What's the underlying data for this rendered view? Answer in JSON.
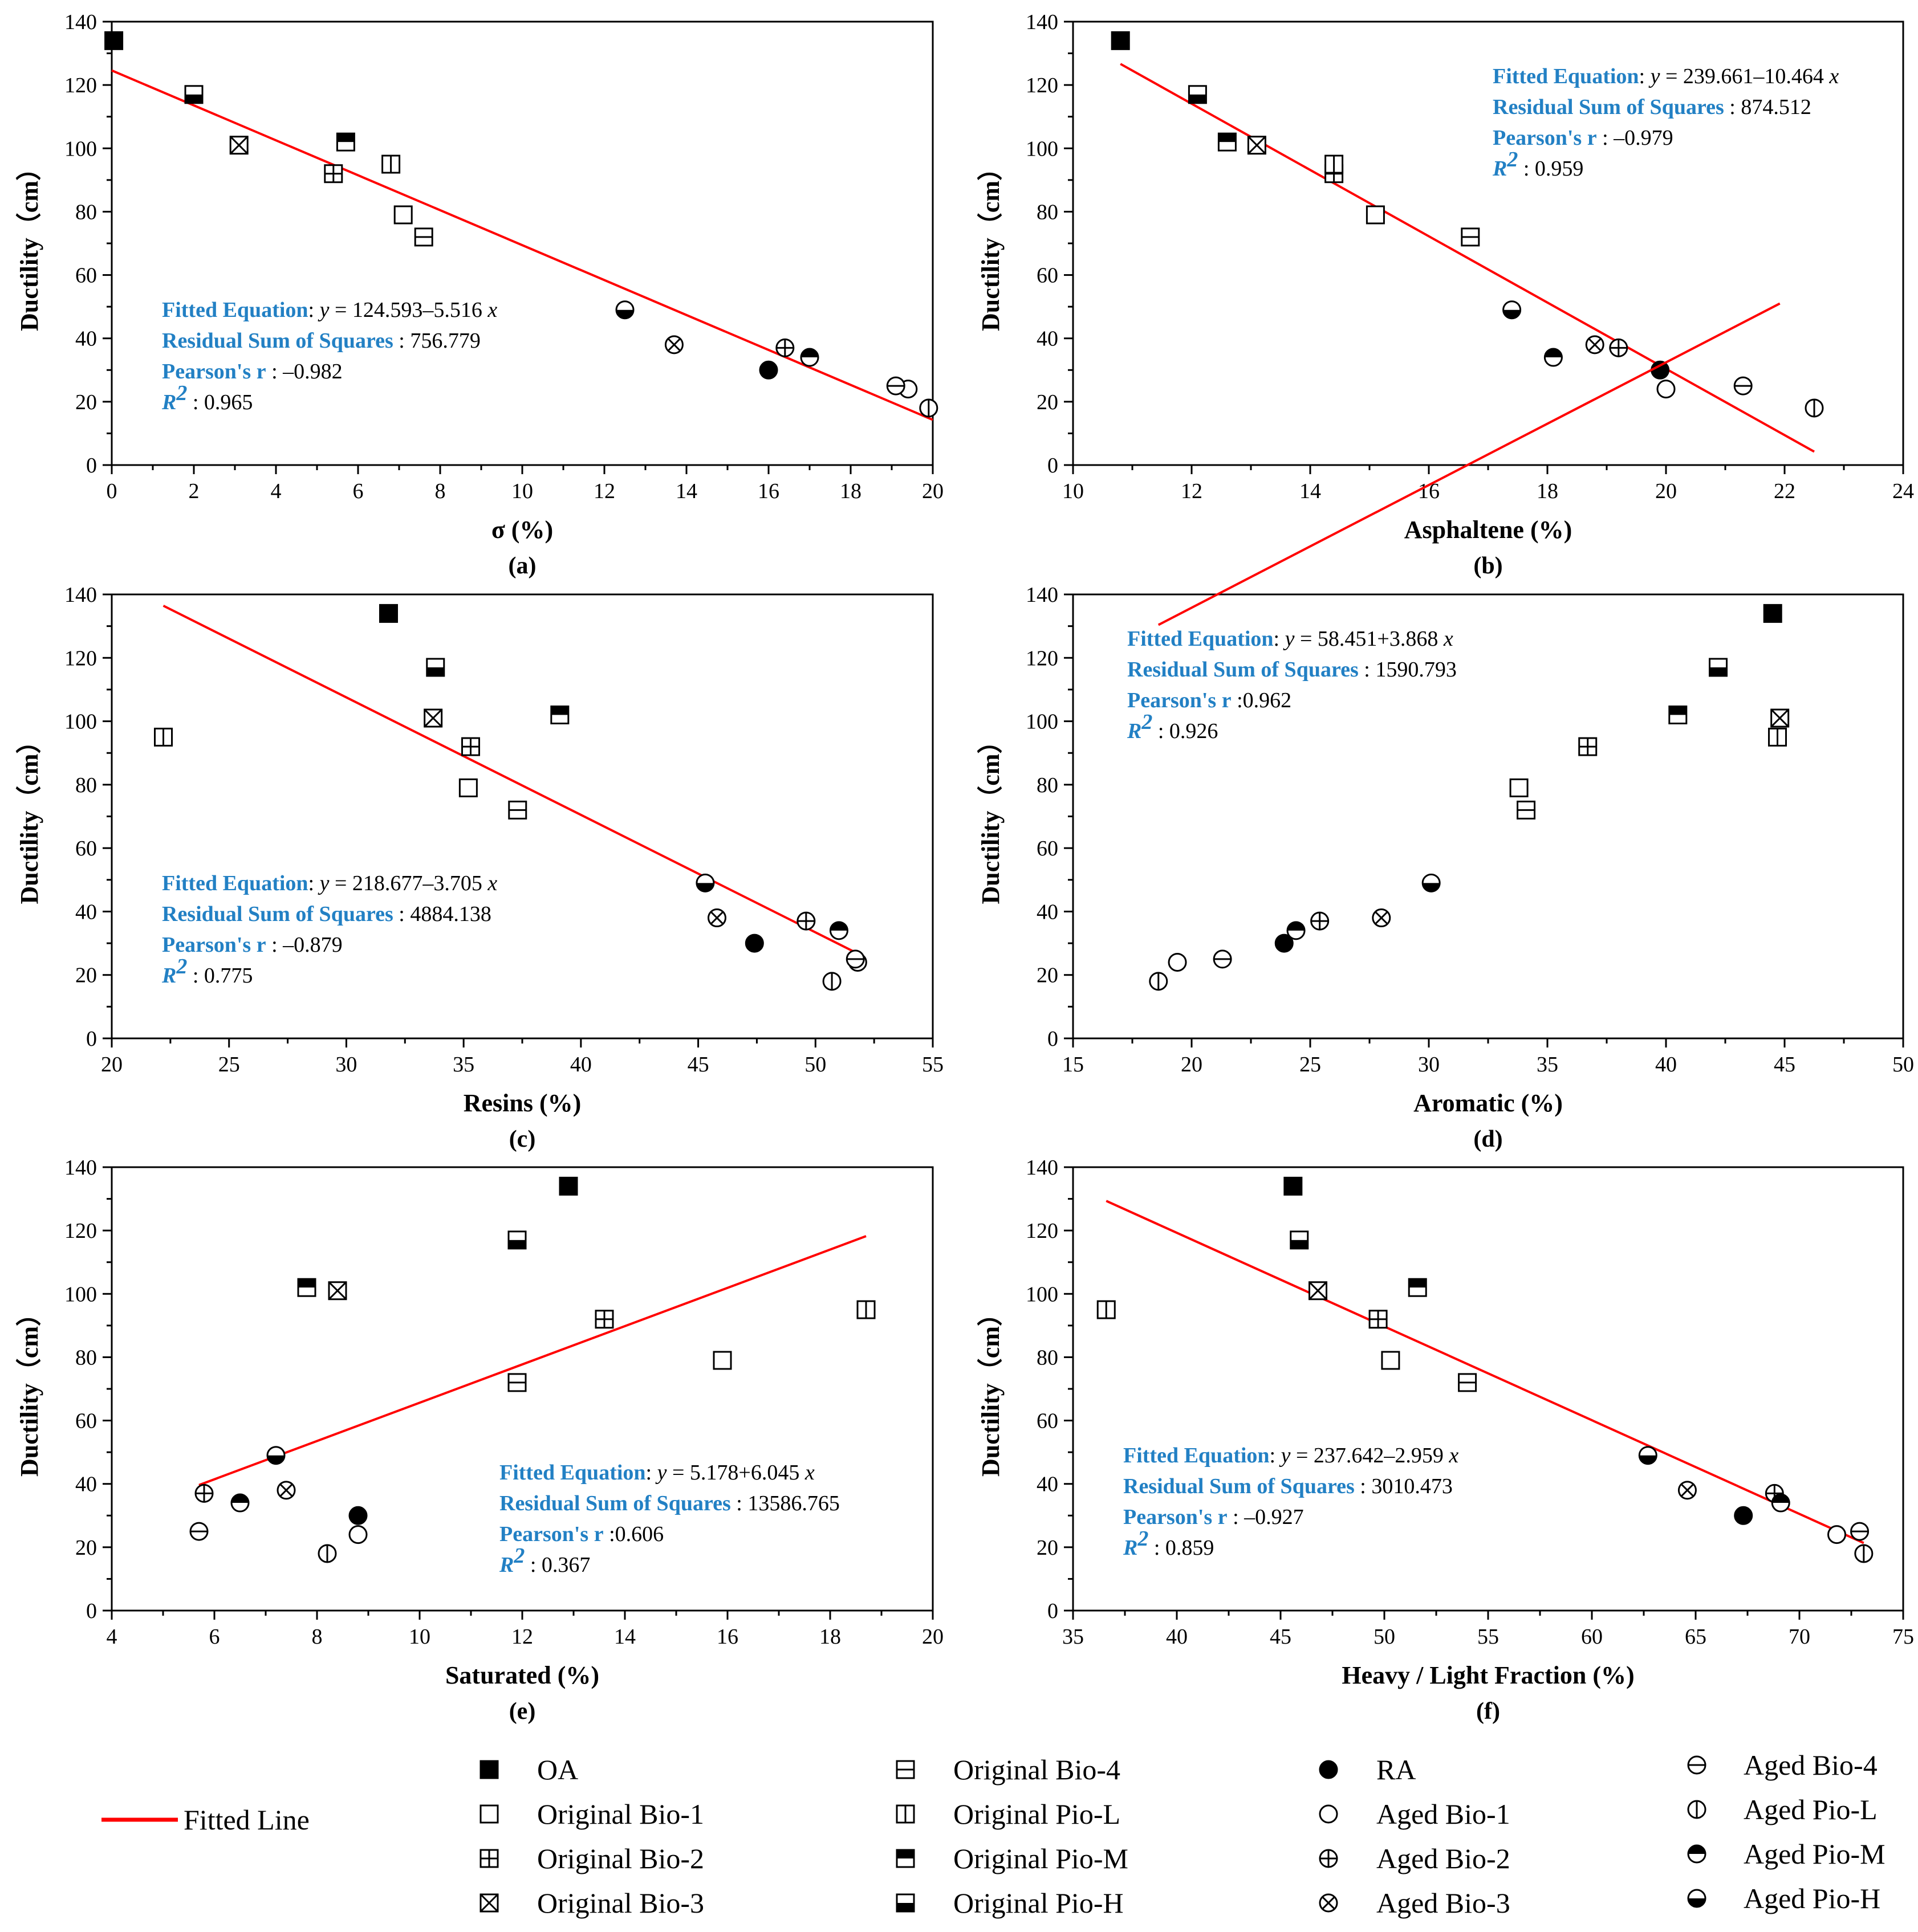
{
  "legend": {
    "fitted_line_label": "Fitted Line",
    "fit_color": "#ff0000",
    "stat_label_color": "#2280c4",
    "series": [
      {
        "id": "OA",
        "label": "OA",
        "marker": "filled-square"
      },
      {
        "id": "OB1",
        "label": "Original Bio-1",
        "marker": "open-square"
      },
      {
        "id": "OB2",
        "label": "Original Bio-2",
        "marker": "square-plus"
      },
      {
        "id": "OB3",
        "label": "Original Bio-3",
        "marker": "square-x"
      },
      {
        "id": "OB4",
        "label": "Original Bio-4",
        "marker": "square-hline"
      },
      {
        "id": "OPL",
        "label": "Original Pio-L",
        "marker": "square-vline"
      },
      {
        "id": "OPM",
        "label": "Original Pio-M",
        "marker": "square-top-filled"
      },
      {
        "id": "OPH",
        "label": "Original Pio-H",
        "marker": "square-bottom-filled"
      },
      {
        "id": "RA",
        "label": "RA",
        "marker": "filled-circle"
      },
      {
        "id": "AB1",
        "label": "Aged Bio-1",
        "marker": "open-circle"
      },
      {
        "id": "AB2",
        "label": "Aged Bio-2",
        "marker": "circle-plus"
      },
      {
        "id": "AB3",
        "label": "Aged Bio-3",
        "marker": "circle-x"
      },
      {
        "id": "AB4",
        "label": "Aged Bio-4",
        "marker": "circle-hline"
      },
      {
        "id": "APL",
        "label": "Aged Pio-L",
        "marker": "circle-vline"
      },
      {
        "id": "APM",
        "label": "Aged Pio-M",
        "marker": "circle-top-filled"
      },
      {
        "id": "APH",
        "label": "Aged Pio-H",
        "marker": "circle-bottom-filled"
      }
    ]
  },
  "chart_data": [
    {
      "type": "scatter",
      "panel": "(a)",
      "xlabel": "σ (%)",
      "ylabel": "Ductility（cm）",
      "xlim": [
        0,
        20
      ],
      "ylim": [
        0,
        140
      ],
      "xticks": [
        "0",
        "2",
        "4",
        "6",
        "8",
        "10",
        "12",
        "14",
        "16",
        "18",
        "20"
      ],
      "yticks": [
        "0",
        "20",
        "40",
        "60",
        "80",
        "100",
        "120",
        "140"
      ],
      "ductility": [
        134,
        79,
        92,
        101,
        72,
        95,
        102,
        117,
        30,
        24,
        37,
        38,
        25,
        18,
        34,
        49
      ],
      "x": [
        0.05,
        7.1,
        5.4,
        3.1,
        7.6,
        6.8,
        5.7,
        2.0,
        16.0,
        19.4,
        16.4,
        13.7,
        19.1,
        19.9,
        17.0,
        12.5
      ],
      "fit": {
        "intercept": 124.593,
        "slope": -5.516,
        "x_range": [
          0,
          20
        ]
      },
      "stats_pos": "bottom-left",
      "stats": {
        "eq_label": "Fitted Equation",
        "eq_value": "124.593–5.516",
        "rss_label": "Residual Sum of Squares",
        "rss_value": "756.779",
        "r_label": "Pearson's r",
        "r_value": "–0.982",
        "r2_label": "R",
        "r2_value": "0.965"
      }
    },
    {
      "type": "scatter",
      "panel": "(b)",
      "xlabel": "Asphaltene (%)",
      "ylabel": "Ductility（cm）",
      "xlim": [
        10,
        24
      ],
      "ylim": [
        0,
        140
      ],
      "xticks": [
        "10",
        "12",
        "14",
        "16",
        "18",
        "20",
        "22",
        "24"
      ],
      "yticks": [
        "0",
        "20",
        "40",
        "60",
        "80",
        "100",
        "120",
        "140"
      ],
      "ductility": [
        134,
        79,
        92,
        101,
        72,
        95,
        102,
        117,
        30,
        24,
        37,
        38,
        25,
        18,
        34,
        49
      ],
      "x": [
        10.8,
        15.1,
        14.4,
        13.1,
        16.7,
        14.4,
        12.6,
        12.1,
        19.9,
        20.0,
        19.2,
        18.8,
        21.3,
        22.5,
        18.1,
        17.4
      ],
      "fit": {
        "intercept": 239.661,
        "slope": -10.464,
        "x_range": [
          10.8,
          22.5
        ]
      },
      "stats_pos": "top-right",
      "stats": {
        "eq_label": "Fitted Equation",
        "eq_value": "239.661–10.464",
        "rss_label": "Residual Sum of Squares",
        "rss_value": "874.512",
        "r_label": "Pearson's r",
        "r_value": "–0.979",
        "r2_label": "R",
        "r2_value": "0.959"
      }
    },
    {
      "type": "scatter",
      "panel": "(c)",
      "xlabel": "Resins (%)",
      "ylabel": "Ductility（cm）",
      "xlim": [
        20,
        55
      ],
      "ylim": [
        0,
        140
      ],
      "xticks": [
        "20",
        "25",
        "30",
        "35",
        "40",
        "45",
        "50",
        "55"
      ],
      "yticks": [
        "0",
        "20",
        "40",
        "60",
        "80",
        "100",
        "120",
        "140"
      ],
      "ductility": [
        134,
        79,
        92,
        101,
        72,
        95,
        102,
        117,
        30,
        24,
        37,
        38,
        25,
        18,
        34,
        49
      ],
      "x": [
        31.8,
        35.2,
        35.3,
        33.7,
        37.3,
        22.2,
        39.1,
        33.8,
        47.4,
        51.8,
        49.6,
        45.8,
        51.7,
        50.7,
        51.0,
        45.3
      ],
      "fit": {
        "intercept": 218.677,
        "slope": -3.705,
        "x_range": [
          22.2,
          51.8
        ]
      },
      "stats_pos": "bottom-left",
      "stats": {
        "eq_label": "Fitted Equation",
        "eq_value": "218.677–3.705",
        "rss_label": "Residual Sum of Squares",
        "rss_value": "4884.138",
        "r_label": "Pearson's r",
        "r_value": "–0.879",
        "r2_label": "R",
        "r2_value": "0.775"
      }
    },
    {
      "type": "scatter",
      "panel": "(d)",
      "xlabel": "Aromatic (%)",
      "ylabel": "Ductility（cm）",
      "xlim": [
        15,
        50
      ],
      "ylim": [
        0,
        140
      ],
      "xticks": [
        "15",
        "20",
        "25",
        "30",
        "35",
        "40",
        "45",
        "50"
      ],
      "yticks": [
        "0",
        "20",
        "40",
        "60",
        "80",
        "100",
        "120",
        "140"
      ],
      "ductility": [
        134,
        79,
        92,
        101,
        72,
        95,
        102,
        117,
        30,
        24,
        37,
        38,
        25,
        18,
        34,
        49
      ],
      "x": [
        44.5,
        33.8,
        36.7,
        44.8,
        34.1,
        44.7,
        40.5,
        42.2,
        23.9,
        19.4,
        25.4,
        28.0,
        21.3,
        18.6,
        24.4,
        30.1
      ],
      "fit": {
        "intercept": 58.451,
        "slope": 3.868,
        "x_range": [
          18.6,
          44.8
        ]
      },
      "stats_pos": "top-left",
      "stats": {
        "eq_label": "Fitted Equation",
        "eq_value": "58.451+3.868",
        "rss_label": "Residual Sum of Squares",
        "rss_value": "1590.793",
        "r_label": "Pearson's r",
        "r_value": "0.962",
        "r2_label": "R",
        "r2_value": "0.926"
      }
    },
    {
      "type": "scatter",
      "panel": "(e)",
      "xlabel": "Saturated (%)",
      "ylabel": "Ductility（cm）",
      "xlim": [
        4,
        20
      ],
      "ylim": [
        0,
        140
      ],
      "xticks": [
        "4",
        "6",
        "8",
        "10",
        "12",
        "14",
        "16",
        "18",
        "20"
      ],
      "yticks": [
        "0",
        "20",
        "40",
        "60",
        "80",
        "100",
        "120",
        "140"
      ],
      "ductility": [
        134,
        79,
        92,
        101,
        72,
        95,
        102,
        117,
        30,
        24,
        37,
        38,
        25,
        18,
        34,
        49
      ],
      "x": [
        12.9,
        15.9,
        13.6,
        8.4,
        11.9,
        18.7,
        7.8,
        11.9,
        8.8,
        8.8,
        5.8,
        7.4,
        5.7,
        8.2,
        6.5,
        7.2
      ],
      "fit": {
        "intercept": 5.178,
        "slope": 6.045,
        "x_range": [
          5.7,
          18.7
        ]
      },
      "stats_pos": "bottom-right",
      "stats": {
        "eq_label": "Fitted Equation",
        "eq_value": "5.178+6.045",
        "rss_label": "Residual Sum of Squares",
        "rss_value": "13586.765",
        "r_label": "Pearson's r",
        "r_value": "0.606",
        "r2_label": "R",
        "r2_value": "0.367"
      }
    },
    {
      "type": "scatter",
      "panel": "(f)",
      "xlabel": "Heavy / Light Fraction (%)",
      "ylabel": "Ductility（cm）",
      "xlim": [
        35,
        75
      ],
      "ylim": [
        0,
        140
      ],
      "xticks": [
        "35",
        "40",
        "45",
        "50",
        "55",
        "60",
        "65",
        "70",
        "75"
      ],
      "yticks": [
        "0",
        "20",
        "40",
        "60",
        "80",
        "100",
        "120",
        "140"
      ],
      "ductility": [
        134,
        79,
        92,
        101,
        72,
        95,
        102,
        117,
        30,
        24,
        37,
        38,
        25,
        18,
        34,
        49
      ],
      "x": [
        45.6,
        50.3,
        49.7,
        46.8,
        54.0,
        36.6,
        51.6,
        45.9,
        67.3,
        71.8,
        68.8,
        64.6,
        72.9,
        73.1,
        69.1,
        62.7
      ],
      "fit": {
        "intercept": 237.642,
        "slope": -2.959,
        "x_range": [
          36.6,
          73.1
        ]
      },
      "stats_pos": "bottom-left",
      "stats": {
        "eq_label": "Fitted Equation",
        "eq_value": "237.642–2.959",
        "rss_label": "Residual Sum of Squares",
        "rss_value": "3010.473",
        "r_label": "Pearson's r",
        "r_value": "–0.927",
        "r2_label": "R",
        "r2_value": "0.859"
      }
    }
  ]
}
